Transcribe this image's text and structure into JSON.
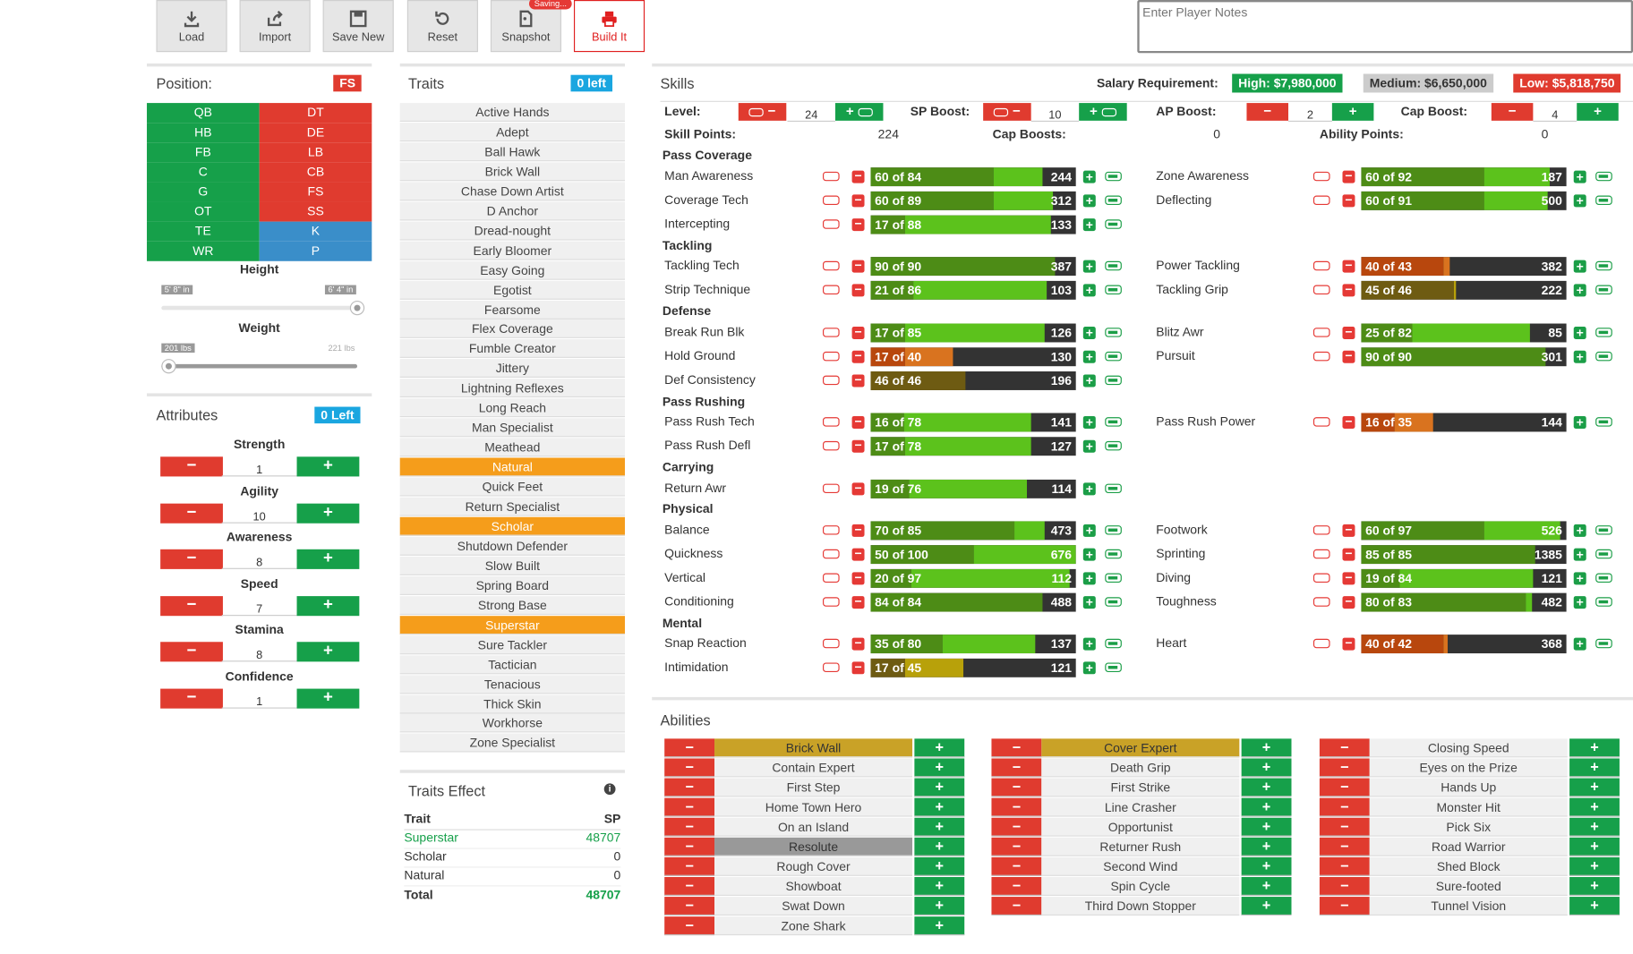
{
  "toolbar": {
    "load": "Load",
    "import": "Import",
    "save_new": "Save New",
    "reset": "Reset",
    "snapshot": "Snapshot",
    "saving_badge": "Saving...",
    "build_it": "Build It"
  },
  "notes": {
    "placeholder": "Enter Player Notes"
  },
  "position": {
    "title": "Position:",
    "selected": "FS",
    "offense": [
      "QB",
      "HB",
      "FB",
      "C",
      "G",
      "OT",
      "TE",
      "WR"
    ],
    "defense": [
      "DT",
      "DE",
      "LB",
      "CB",
      "FS",
      "SS",
      "K",
      "P"
    ],
    "height_label": "Height",
    "height_min": "5' 8\" in",
    "height_max": "6' 4\" in",
    "height_value": 1.0,
    "weight_label": "Weight",
    "weight_min": "201 lbs",
    "weight_max": "221 lbs",
    "weight_value": 0.0
  },
  "attributes": {
    "title": "Attributes",
    "left": "0 Left",
    "items": [
      {
        "label": "Strength",
        "value": "1"
      },
      {
        "label": "Agility",
        "value": "10"
      },
      {
        "label": "Awareness",
        "value": "8"
      },
      {
        "label": "Speed",
        "value": "7"
      },
      {
        "label": "Stamina",
        "value": "8"
      },
      {
        "label": "Confidence",
        "value": "1"
      }
    ]
  },
  "traits": {
    "title": "Traits",
    "left": "0 left",
    "items": [
      "Active Hands",
      "Adept",
      "Ball Hawk",
      "Brick Wall",
      "Chase Down Artist",
      "D Anchor",
      "Dread-nought",
      "Early Bloomer",
      "Easy Going",
      "Egotist",
      "Fearsome",
      "Flex Coverage",
      "Fumble Creator",
      "Jittery",
      "Lightning Reflexes",
      "Long Reach",
      "Man Specialist",
      "Meathead",
      "Natural",
      "Quick Feet",
      "Return Specialist",
      "Scholar",
      "Shutdown Defender",
      "Slow Built",
      "Spring Board",
      "Strong Base",
      "Superstar",
      "Sure Tackler",
      "Tactician",
      "Tenacious",
      "Thick Skin",
      "Workhorse",
      "Zone Specialist"
    ],
    "selected": [
      "Natural",
      "Scholar",
      "Superstar"
    ]
  },
  "traits_effect": {
    "title": "Traits Effect",
    "col_trait": "Trait",
    "col_sp": "SP",
    "rows": [
      {
        "trait": "Superstar",
        "sp": "48707"
      },
      {
        "trait": "Scholar",
        "sp": "0"
      },
      {
        "trait": "Natural",
        "sp": "0"
      }
    ],
    "total_label": "Total",
    "total": "48707"
  },
  "skills": {
    "title": "Skills",
    "salary_label": "Salary Requirement:",
    "salary_high": "High: $7,980,000",
    "salary_medium": "Medium: $6,650,000",
    "salary_low": "Low: $5,818,750",
    "level_label": "Level:",
    "level": "24",
    "sp_boost_label": "SP Boost:",
    "sp_boost": "10",
    "ap_boost_label": "AP Boost:",
    "ap_boost": "2",
    "cap_boost_label": "Cap Boost:",
    "cap_boost": "4",
    "skill_points_label": "Skill Points:",
    "skill_points": "224",
    "cap_boosts_label": "Cap Boosts:",
    "cap_boosts": "0",
    "ability_points_label": "Ability Points:",
    "ability_points": "0",
    "categories": [
      "Pass Coverage",
      "Tackling",
      "Defense",
      "Pass Rushing",
      "Carrying",
      "Physical",
      "Mental"
    ],
    "rows": [
      {
        "name": "Man Awareness",
        "text": "60 of 84",
        "cost": "244",
        "cur": 60,
        "cap": 84
      },
      {
        "name": "Zone Awareness",
        "text": "60 of 92",
        "cost": "187",
        "cur": 60,
        "cap": 92
      },
      {
        "name": "Coverage Tech",
        "text": "60 of 89",
        "cost": "312",
        "cur": 60,
        "cap": 89
      },
      {
        "name": "Deflecting",
        "text": "60 of 91",
        "cost": "500",
        "cur": 60,
        "cap": 91
      },
      {
        "name": "Intercepting",
        "text": "17 of 88",
        "cost": "133",
        "cur": 17,
        "cap": 88
      },
      {
        "name": "Tackling Tech",
        "text": "90 of 90",
        "cost": "387",
        "cur": 90,
        "cap": 90
      },
      {
        "name": "Power Tackling",
        "text": "40 of 43",
        "cost": "382",
        "cur": 40,
        "cap": 43
      },
      {
        "name": "Strip Technique",
        "text": "21 of 86",
        "cost": "103",
        "cur": 21,
        "cap": 86
      },
      {
        "name": "Tackling Grip",
        "text": "45 of 46",
        "cost": "222",
        "cur": 45,
        "cap": 46
      },
      {
        "name": "Break Run Blk",
        "text": "17 of 85",
        "cost": "126",
        "cur": 17,
        "cap": 85
      },
      {
        "name": "Blitz Awr",
        "text": "25 of 82",
        "cost": "85",
        "cur": 25,
        "cap": 82
      },
      {
        "name": "Hold Ground",
        "text": "17 of 40",
        "cost": "130",
        "cur": 17,
        "cap": 40
      },
      {
        "name": "Pursuit",
        "text": "90 of 90",
        "cost": "301",
        "cur": 90,
        "cap": 90
      },
      {
        "name": "Def Consistency",
        "text": "46 of 46",
        "cost": "196",
        "cur": 46,
        "cap": 46
      },
      {
        "name": "Pass Rush Tech",
        "text": "16 of 78",
        "cost": "141",
        "cur": 16,
        "cap": 78
      },
      {
        "name": "Pass Rush Power",
        "text": "16 of 35",
        "cost": "144",
        "cur": 16,
        "cap": 35
      },
      {
        "name": "Pass Rush Defl",
        "text": "17 of 78",
        "cost": "127",
        "cur": 17,
        "cap": 78
      },
      {
        "name": "Return Awr",
        "text": "19 of 76",
        "cost": "114",
        "cur": 19,
        "cap": 76
      },
      {
        "name": "Balance",
        "text": "70 of 85",
        "cost": "473",
        "cur": 70,
        "cap": 85
      },
      {
        "name": "Footwork",
        "text": "60 of 97",
        "cost": "526",
        "cur": 60,
        "cap": 97
      },
      {
        "name": "Quickness",
        "text": "50 of 100",
        "cost": "676",
        "cur": 50,
        "cap": 100
      },
      {
        "name": "Sprinting",
        "text": "85 of 85",
        "cost": "1385",
        "cur": 85,
        "cap": 85
      },
      {
        "name": "Vertical",
        "text": "20 of 97",
        "cost": "112",
        "cur": 20,
        "cap": 97
      },
      {
        "name": "Diving",
        "text": "19 of 84",
        "cost": "121",
        "cur": 19,
        "cap": 84
      },
      {
        "name": "Conditioning",
        "text": "84 of 84",
        "cost": "488",
        "cur": 84,
        "cap": 84
      },
      {
        "name": "Toughness",
        "text": "80 of 83",
        "cost": "482",
        "cur": 80,
        "cap": 83
      },
      {
        "name": "Snap Reaction",
        "text": "35 of 80",
        "cost": "137",
        "cur": 35,
        "cap": 80
      },
      {
        "name": "Heart",
        "text": "40 of 42",
        "cost": "368",
        "cur": 40,
        "cap": 42
      },
      {
        "name": "Intimidation",
        "text": "17 of 45",
        "cost": "121",
        "cur": 17,
        "cap": 45
      }
    ]
  },
  "abilities": {
    "title": "Abilities",
    "col1": [
      "Brick Wall",
      "Contain Expert",
      "First Step",
      "Home Town Hero",
      "On an Island",
      "Resolute",
      "Rough Cover",
      "Showboat",
      "Swat Down",
      "Zone Shark"
    ],
    "col2": [
      "Cover Expert",
      "Death Grip",
      "First Strike",
      "Line Crasher",
      "Opportunist",
      "Returner Rush",
      "Second Wind",
      "Spin Cycle",
      "Third Down Stopper"
    ],
    "col3": [
      "Closing Speed",
      "Eyes on the Prize",
      "Hands Up",
      "Monster Hit",
      "Pick Six",
      "Road Warrior",
      "Shed Block",
      "Sure-footed",
      "Tunnel Vision"
    ],
    "highlight_gold": [
      "Brick Wall",
      "Cover Expert"
    ],
    "highlight_grey": [
      "Resolute"
    ]
  },
  "colors": {
    "green": "#16a04a",
    "red": "#e03b2f",
    "orange": "#f59d1b",
    "blue": "#3a8ec9",
    "cyan": "#1aa6e0"
  }
}
